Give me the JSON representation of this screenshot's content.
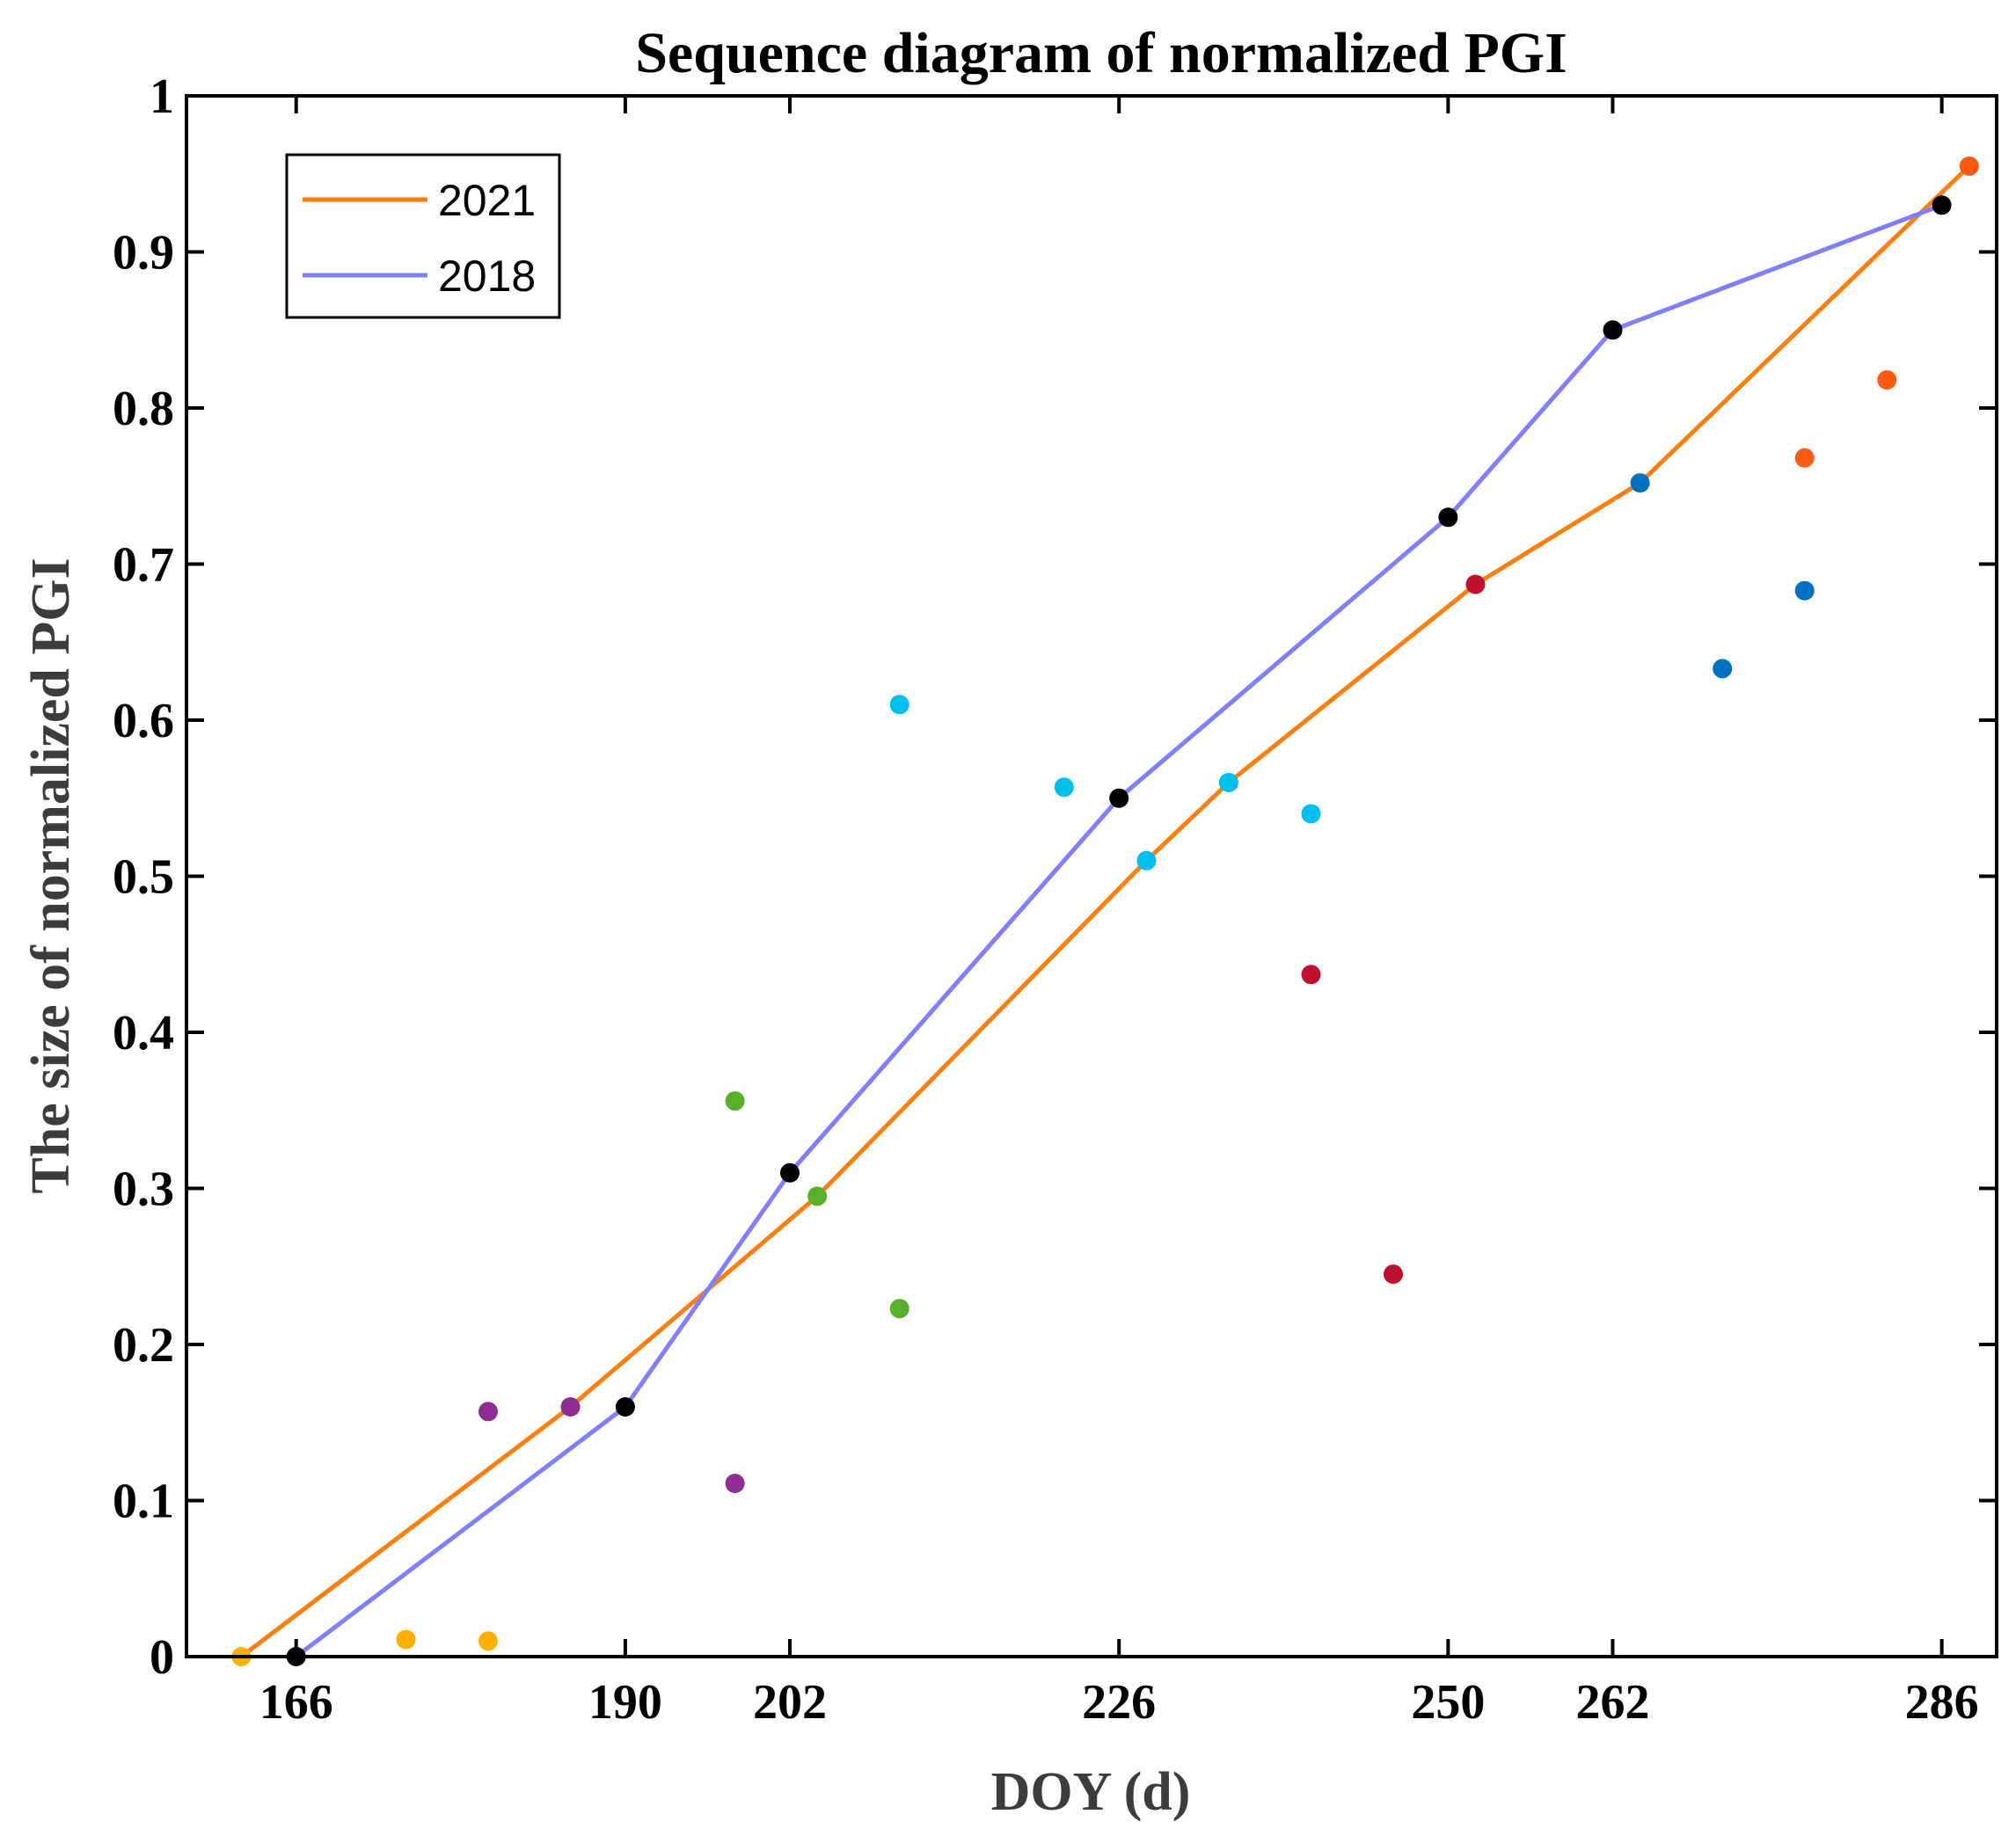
{
  "chart_data": {
    "type": "line",
    "title": "Sequence diagram of normalized PGI",
    "xlabel": "DOY (d)",
    "ylabel": "The size of normalized PGI",
    "xlim": [
      158,
      290
    ],
    "ylim": [
      0,
      1
    ],
    "xticks": [
      166,
      190,
      202,
      226,
      250,
      262,
      286
    ],
    "yticks": [
      0,
      0.1,
      0.2,
      0.3,
      0.4,
      0.5,
      0.6,
      0.7,
      0.8,
      0.9,
      1
    ],
    "ytick_labels": [
      "0",
      "0.1",
      "0.2",
      "0.3",
      "0.4",
      "0.5",
      "0.6",
      "0.7",
      "0.8",
      "0.9",
      "1"
    ],
    "grid": false,
    "legend_position": "top-left",
    "series": [
      {
        "name": "2021",
        "color": "#FF7F0E",
        "points": [
          [
            162,
            0
          ],
          [
            186,
            0.16
          ],
          [
            204,
            0.295
          ],
          [
            228,
            0.51
          ],
          [
            234,
            0.56
          ],
          [
            252,
            0.687
          ],
          [
            264,
            0.752
          ],
          [
            288,
            0.955
          ]
        ]
      },
      {
        "name": "2018",
        "color": "#7F7FFF",
        "points": [
          [
            166,
            0
          ],
          [
            190,
            0.16
          ],
          [
            202,
            0.31
          ],
          [
            226,
            0.55
          ],
          [
            250,
            0.73
          ],
          [
            262,
            0.85
          ],
          [
            286,
            0.93
          ]
        ]
      }
    ],
    "markers": [
      {
        "x": 166,
        "y": 0,
        "color": "#000000"
      },
      {
        "x": 190,
        "y": 0.16,
        "color": "#000000"
      },
      {
        "x": 202,
        "y": 0.31,
        "color": "#000000"
      },
      {
        "x": 226,
        "y": 0.55,
        "color": "#000000"
      },
      {
        "x": 250,
        "y": 0.73,
        "color": "#000000"
      },
      {
        "x": 262,
        "y": 0.85,
        "color": "#000000"
      },
      {
        "x": 286,
        "y": 0.93,
        "color": "#000000"
      },
      {
        "x": 162,
        "y": 0,
        "color": "#FFB000"
      },
      {
        "x": 174,
        "y": 0.011,
        "color": "#FFB000"
      },
      {
        "x": 180,
        "y": 0.01,
        "color": "#FFB000"
      },
      {
        "x": 180,
        "y": 0.157,
        "color": "#8E2C91"
      },
      {
        "x": 186,
        "y": 0.16,
        "color": "#8E2C91"
      },
      {
        "x": 198,
        "y": 0.111,
        "color": "#8E2C91"
      },
      {
        "x": 198,
        "y": 0.356,
        "color": "#58B02A"
      },
      {
        "x": 204,
        "y": 0.295,
        "color": "#58B02A"
      },
      {
        "x": 210,
        "y": 0.223,
        "color": "#58B02A"
      },
      {
        "x": 210,
        "y": 0.61,
        "color": "#00BFEF"
      },
      {
        "x": 222,
        "y": 0.557,
        "color": "#00BFEF"
      },
      {
        "x": 228,
        "y": 0.51,
        "color": "#00BFEF"
      },
      {
        "x": 234,
        "y": 0.56,
        "color": "#00BFEF"
      },
      {
        "x": 240,
        "y": 0.54,
        "color": "#00BFEF"
      },
      {
        "x": 240,
        "y": 0.437,
        "color": "#C0102F"
      },
      {
        "x": 246,
        "y": 0.245,
        "color": "#C0102F"
      },
      {
        "x": 252,
        "y": 0.687,
        "color": "#C0102F"
      },
      {
        "x": 264,
        "y": 0.752,
        "color": "#0070C0"
      },
      {
        "x": 270,
        "y": 0.633,
        "color": "#0070C0"
      },
      {
        "x": 276,
        "y": 0.683,
        "color": "#0070C0"
      },
      {
        "x": 276,
        "y": 0.768,
        "color": "#FF5A12"
      },
      {
        "x": 282,
        "y": 0.818,
        "color": "#FF5A12"
      },
      {
        "x": 288,
        "y": 0.955,
        "color": "#FF5A12"
      }
    ]
  }
}
